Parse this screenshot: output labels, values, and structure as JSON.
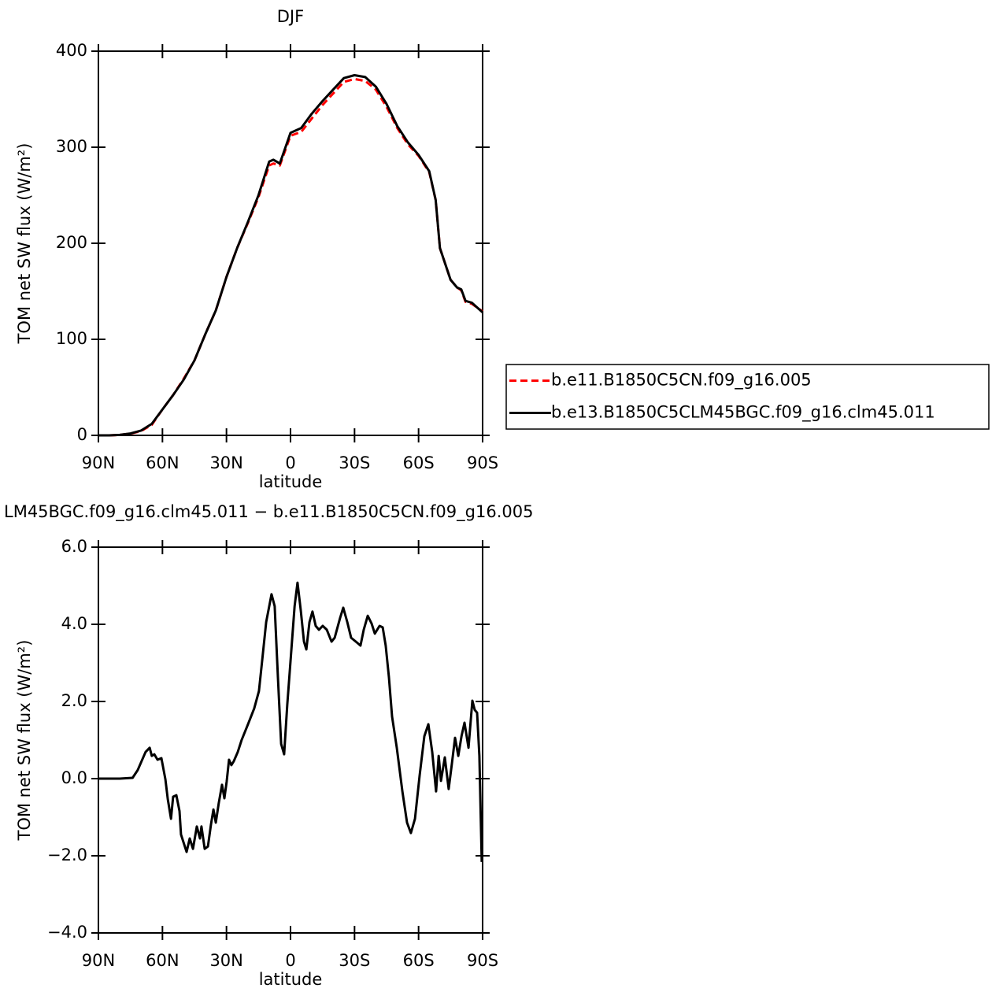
{
  "chart_data": [
    {
      "type": "line",
      "title": "DJF",
      "x_label": "latitude",
      "y_label": "TOM net SW flux (W/m²)",
      "xlim": [
        90,
        -90
      ],
      "xticks": [
        {
          "value": 90,
          "label": "90N"
        },
        {
          "value": 60,
          "label": "60N"
        },
        {
          "value": 30,
          "label": "30N"
        },
        0,
        {
          "value": -30,
          "label": "30S"
        },
        {
          "value": -60,
          "label": "60S"
        },
        {
          "value": -90,
          "label": "90S"
        }
      ],
      "ylim": [
        0,
        400
      ],
      "yticks": [
        0,
        100,
        200,
        300,
        400
      ],
      "legend": "outside-right",
      "x": [
        90,
        85,
        80,
        75,
        70,
        65,
        60,
        55,
        50,
        45,
        40,
        35,
        30,
        25,
        20,
        15,
        10,
        8,
        5,
        0,
        -5,
        -10,
        -15,
        -20,
        -25,
        -30,
        -35,
        -40,
        -45,
        -50,
        -55,
        -60,
        -65,
        -68,
        -70,
        -75,
        -78,
        -80,
        -82,
        -85,
        -90
      ],
      "series": [
        {
          "name": "b.e11.B1850C5CN.f09_g16.005",
          "color": "#ff0000",
          "dash": true,
          "values": [
            0,
            0,
            0.5,
            1.8,
            4.5,
            11,
            27,
            42,
            59,
            78,
            105,
            130,
            165,
            195,
            221,
            248,
            281,
            283,
            281,
            312,
            316,
            330,
            344,
            356,
            368,
            371,
            369,
            360,
            342,
            320,
            303,
            291,
            274,
            245,
            195,
            162,
            154,
            151,
            139,
            137,
            129
          ]
        },
        {
          "name": "b.e13.B1850C5CLM45BGC.f09_g16.clm45.011",
          "color": "#000000",
          "dash": false,
          "values": [
            0,
            0,
            0.5,
            2,
            5,
            12,
            27,
            42,
            58,
            78,
            105,
            130,
            165,
            195,
            222,
            250,
            285,
            287,
            283,
            315,
            320,
            335,
            348,
            360,
            372,
            375,
            373,
            363,
            345,
            322,
            305,
            292,
            275,
            245,
            195,
            162,
            154,
            152,
            140,
            138,
            128
          ]
        }
      ]
    },
    {
      "type": "line",
      "title": "LM45BGC.f09_g16.clm45.011 − b.e11.B1850C5CN.f09_g16.005",
      "x_label": "latitude",
      "y_label": "TOM net SW flux (W/m²)",
      "xlim": [
        90,
        -90
      ],
      "xticks": [
        {
          "value": 90,
          "label": "90N"
        },
        {
          "value": 60,
          "label": "60N"
        },
        {
          "value": 30,
          "label": "30N"
        },
        0,
        {
          "value": -30,
          "label": "30S"
        },
        {
          "value": -60,
          "label": "60S"
        },
        {
          "value": -90,
          "label": "90S"
        }
      ],
      "ylim": [
        -4,
        6
      ],
      "yticks": [
        {
          "value": -4,
          "label": "−4.0"
        },
        {
          "value": -2,
          "label": "−2.0"
        },
        {
          "value": 0,
          "label": "0.0"
        },
        {
          "value": 2,
          "label": "2.0"
        },
        {
          "value": 4,
          "label": "4.0"
        },
        {
          "value": 6,
          "label": "6.0"
        }
      ],
      "x": [
        90,
        80,
        74,
        71.6,
        67.9,
        66,
        65,
        63.8,
        62.3,
        60.5,
        58.6,
        57.5,
        56,
        55,
        53.5,
        52,
        51.3,
        48.7,
        47.2,
        45.7,
        43.9,
        42.4,
        41.7,
        40.2,
        38.7,
        37.3,
        36.1,
        35,
        33.6,
        32.1,
        31,
        29.9,
        28.8,
        27.7,
        26.6,
        24.7,
        22.9,
        19.9,
        17,
        14.8,
        13.3,
        11.4,
        8.9,
        7.4,
        5.9,
        4.4,
        3,
        1.5,
        0,
        -1.9,
        -3.3,
        -4.8,
        -6.3,
        -7.4,
        -8.9,
        -10.3,
        -11.8,
        -13.3,
        -15.1,
        -17,
        -19.2,
        -20.7,
        -23.2,
        -24.7,
        -26.6,
        -28.4,
        -30.6,
        -32.8,
        -34.3,
        -36.2,
        -38,
        -39.5,
        -41.7,
        -43.2,
        -44.6,
        -46.1,
        -47.6,
        -49.8,
        -52.4,
        -54.6,
        -56.4,
        -58.3,
        -60.5,
        -62.7,
        -64.6,
        -66.4,
        -68.2,
        -69.4,
        -70.5,
        -72.3,
        -74.1,
        -75.6,
        -77.1,
        -78.6,
        -80.1,
        -81.5,
        -83.4,
        -85.2,
        -86.3,
        -87.4,
        -88.5,
        -89.6
      ],
      "series": [
        {
          "color": "#000000",
          "values": [
            0,
            0,
            0.02,
            0.22,
            0.69,
            0.8,
            0.59,
            0.63,
            0.49,
            0.53,
            -0.02,
            -0.53,
            -1.04,
            -0.47,
            -0.43,
            -0.84,
            -1.45,
            -1.9,
            -1.55,
            -1.82,
            -1.24,
            -1.55,
            -1.24,
            -1.82,
            -1.76,
            -1.2,
            -0.8,
            -1.14,
            -0.63,
            -0.16,
            -0.51,
            -0.08,
            0.49,
            0.35,
            0.45,
            0.69,
            1.0,
            1.41,
            1.82,
            2.27,
            3.04,
            4.06,
            4.78,
            4.47,
            2.63,
            0.9,
            0.63,
            1.92,
            3.04,
            4.47,
            5.08,
            4.37,
            3.55,
            3.35,
            4.06,
            4.33,
            3.96,
            3.86,
            3.96,
            3.86,
            3.55,
            3.65,
            4.16,
            4.43,
            4.06,
            3.65,
            3.55,
            3.45,
            3.86,
            4.22,
            4.02,
            3.76,
            3.96,
            3.92,
            3.45,
            2.63,
            1.61,
            0.8,
            -0.33,
            -1.14,
            -1.41,
            -1.04,
            0.08,
            1.1,
            1.41,
            0.69,
            -0.33,
            0.59,
            -0.06,
            0.55,
            -0.27,
            0.39,
            1.06,
            0.59,
            1.1,
            1.45,
            0.8,
            2.02,
            1.78,
            1.71,
            0.59,
            -2.16
          ]
        }
      ]
    }
  ]
}
